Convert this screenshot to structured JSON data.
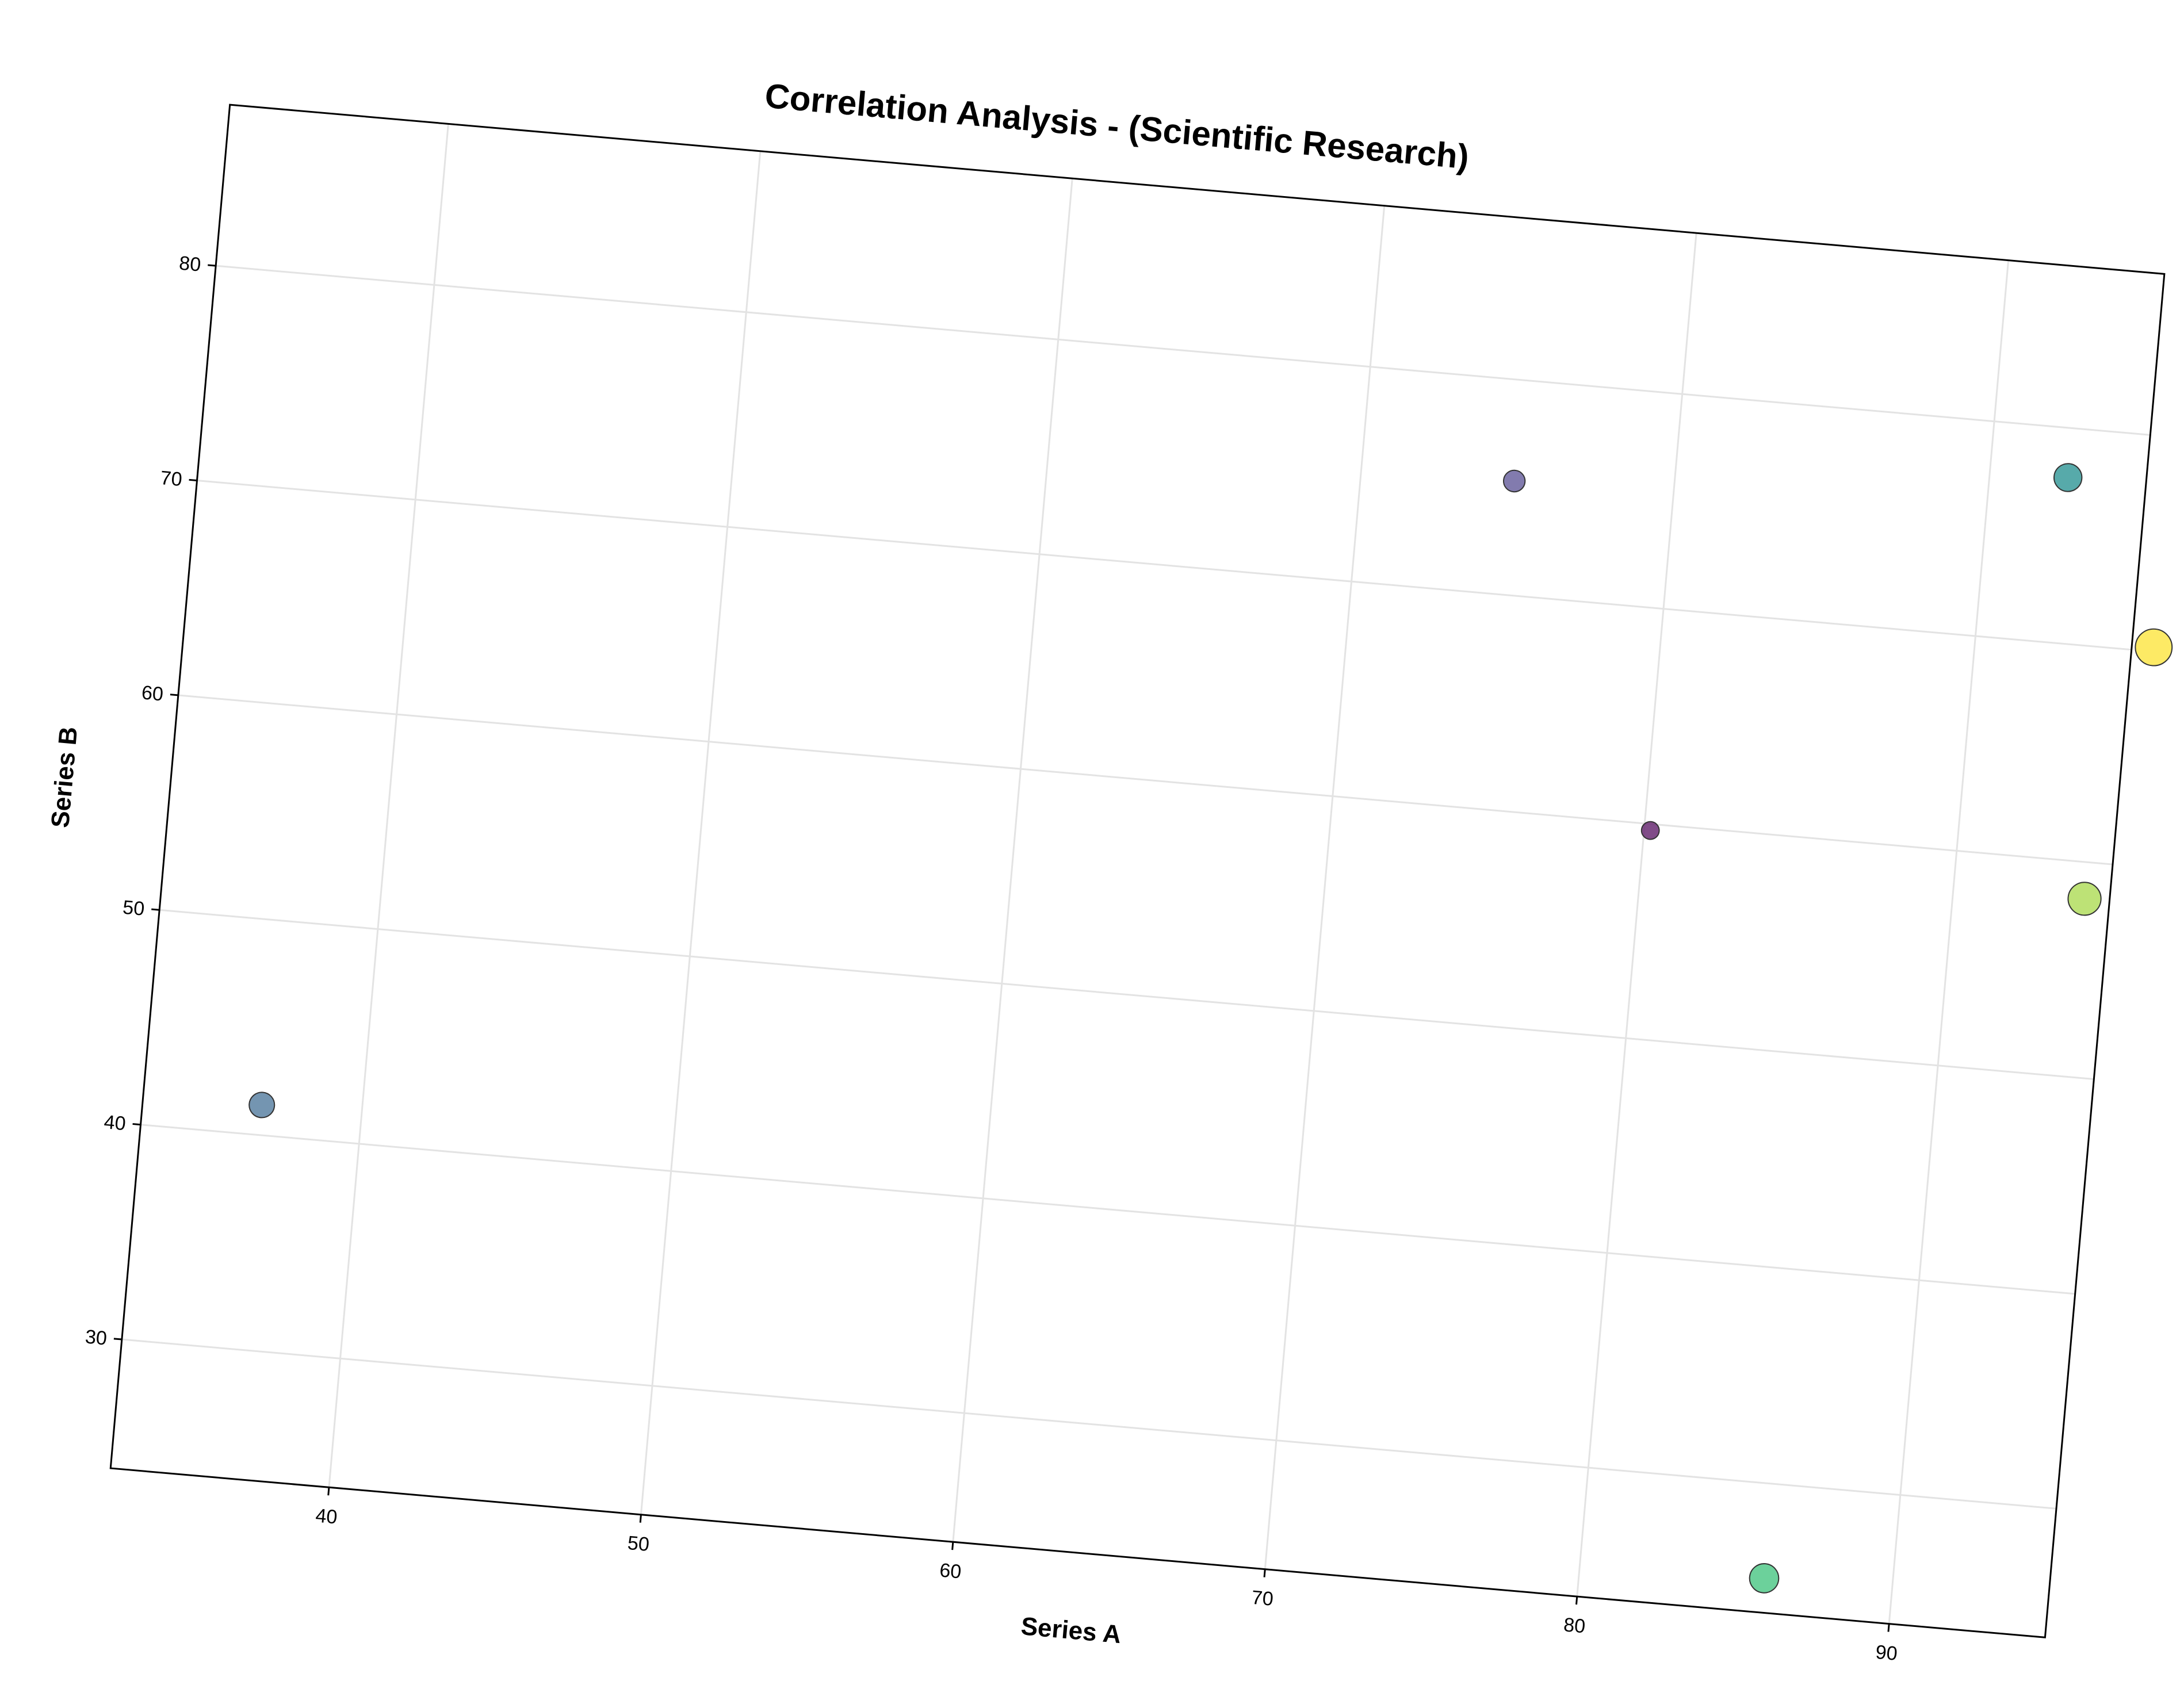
{
  "chart_data": {
    "type": "scatter",
    "title": "Correlation Analysis - (Scientific Research)",
    "xlabel": "Series A",
    "ylabel": "Series B",
    "xlim": [
      33,
      95
    ],
    "ylim": [
      24,
      87.5
    ],
    "x_ticks": [
      40,
      50,
      60,
      70,
      80,
      90
    ],
    "y_ticks": [
      30,
      40,
      50,
      60,
      70,
      80
    ],
    "grid": true,
    "legend": "none",
    "points": [
      {
        "x": 36.8,
        "y": 41.4,
        "size": 2.0,
        "color": "#5c82a3"
      },
      {
        "x": 74.9,
        "y": 75.3,
        "size": 1.7,
        "color": "#6c64a0"
      },
      {
        "x": 80.2,
        "y": 59.7,
        "size": 1.4,
        "color": "#6a2d73"
      },
      {
        "x": 85.9,
        "y": 25.6,
        "size": 2.3,
        "color": "#52c98a"
      },
      {
        "x": 92.5,
        "y": 77.7,
        "size": 2.2,
        "color": "#3a9b9b"
      },
      {
        "x": 94.2,
        "y": 58.3,
        "size": 2.6,
        "color": "#b2dd5e"
      },
      {
        "x": 95.7,
        "y": 70.2,
        "size": 2.9,
        "color": "#fde64a"
      }
    ]
  }
}
